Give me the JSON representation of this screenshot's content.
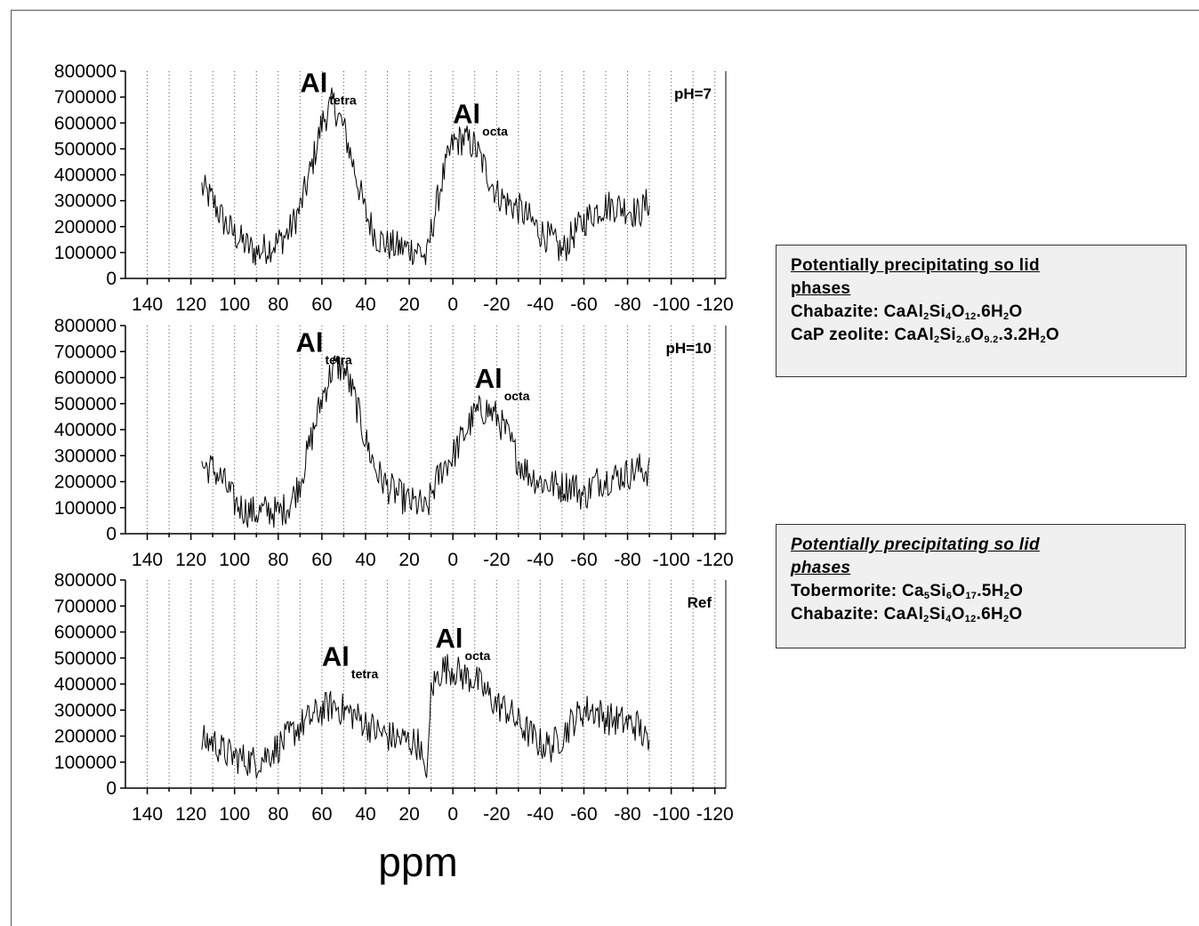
{
  "chart_data": [
    {
      "type": "line",
      "panel_label": "pH=7",
      "xlim": [
        150,
        -125
      ],
      "ylim": [
        0,
        800000
      ],
      "yticks": [
        "0",
        "100000",
        "200000",
        "300000",
        "400000",
        "500000",
        "600000",
        "700000",
        "800000"
      ],
      "xticks": [
        "140",
        "120",
        "100",
        "80",
        "60",
        "40",
        "20",
        "0",
        "-20",
        "-40",
        "-60",
        "-80",
        "-100",
        "-120"
      ],
      "grid": "vertical dotted",
      "peak_labels": [
        {
          "main": "Al",
          "sub": "tetra",
          "x": 70,
          "y": 720000
        },
        {
          "main": "Al",
          "sub": "octa",
          "x": 0,
          "y": 600000
        }
      ],
      "series": [
        {
          "x": [
            115,
            110,
            105,
            100,
            95,
            90,
            85,
            80,
            75,
            70,
            65,
            60,
            55,
            50,
            45,
            40,
            35,
            30,
            25,
            20,
            15,
            12,
            10,
            5,
            0,
            -5,
            -10,
            -15,
            -20,
            -25,
            -30,
            -35,
            -40,
            -45,
            -50,
            -55,
            -60,
            -65,
            -70,
            -75,
            -80,
            -85,
            -90
          ],
          "values": [
            350000,
            300000,
            220000,
            170000,
            130000,
            100000,
            120000,
            140000,
            180000,
            270000,
            420000,
            600000,
            680000,
            580000,
            420000,
            250000,
            160000,
            130000,
            120000,
            115000,
            110000,
            70000,
            180000,
            380000,
            520000,
            540000,
            510000,
            420000,
            330000,
            290000,
            270000,
            230000,
            180000,
            150000,
            100000,
            170000,
            220000,
            260000,
            280000,
            280000,
            270000,
            250000,
            300000
          ]
        }
      ]
    },
    {
      "type": "line",
      "panel_label": "pH=10",
      "xlim": [
        150,
        -125
      ],
      "ylim": [
        0,
        800000
      ],
      "yticks": [
        "0",
        "100000",
        "200000",
        "300000",
        "400000",
        "500000",
        "600000",
        "700000",
        "800000"
      ],
      "xticks": [
        "140",
        "120",
        "100",
        "80",
        "60",
        "40",
        "20",
        "0",
        "-20",
        "-40",
        "-60",
        "-80",
        "-100",
        "-120"
      ],
      "grid": "vertical dotted",
      "peak_labels": [
        {
          "main": "Al",
          "sub": "tetra",
          "x": 72,
          "y": 700000
        },
        {
          "main": "Al",
          "sub": "octa",
          "x": -10,
          "y": 560000
        }
      ],
      "series": [
        {
          "x": [
            115,
            110,
            105,
            100,
            95,
            90,
            85,
            80,
            75,
            70,
            65,
            60,
            55,
            50,
            45,
            40,
            35,
            30,
            25,
            20,
            15,
            12,
            10,
            5,
            0,
            -5,
            -10,
            -15,
            -20,
            -25,
            -30,
            -35,
            -40,
            -45,
            -50,
            -55,
            -60,
            -65,
            -70,
            -75,
            -80,
            -85,
            -90
          ],
          "values": [
            260000,
            250000,
            200000,
            120000,
            90000,
            80000,
            90000,
            80000,
            110000,
            200000,
            360000,
            520000,
            640000,
            640000,
            520000,
            360000,
            240000,
            180000,
            150000,
            120000,
            110000,
            80000,
            150000,
            250000,
            300000,
            380000,
            460000,
            480000,
            450000,
            380000,
            280000,
            230000,
            200000,
            190000,
            180000,
            190000,
            140000,
            200000,
            210000,
            220000,
            230000,
            250000,
            240000
          ]
        }
      ]
    },
    {
      "type": "line",
      "panel_label": "Ref",
      "xlim": [
        150,
        -125
      ],
      "ylim": [
        0,
        800000
      ],
      "yticks": [
        "0",
        "100000",
        "200000",
        "300000",
        "400000",
        "500000",
        "600000",
        "700000",
        "800000"
      ],
      "xticks": [
        "140",
        "120",
        "100",
        "80",
        "60",
        "40",
        "20",
        "0",
        "-20",
        "-40",
        "-60",
        "-80",
        "-100",
        "-120"
      ],
      "grid": "vertical dotted",
      "peak_labels": [
        {
          "main": "Al",
          "sub": "tetra",
          "x": 60,
          "y": 470000
        },
        {
          "main": "Al",
          "sub": "octa",
          "x": 8,
          "y": 540000
        }
      ],
      "series": [
        {
          "x": [
            115,
            110,
            105,
            100,
            95,
            90,
            85,
            80,
            75,
            70,
            65,
            60,
            55,
            50,
            45,
            40,
            35,
            30,
            25,
            20,
            15,
            13,
            11,
            10,
            5,
            0,
            -5,
            -10,
            -15,
            -20,
            -25,
            -30,
            -35,
            -40,
            -45,
            -50,
            -55,
            -60,
            -65,
            -70,
            -75,
            -80,
            -85,
            -90
          ],
          "values": [
            180000,
            180000,
            140000,
            120000,
            110000,
            100000,
            130000,
            160000,
            200000,
            240000,
            270000,
            300000,
            320000,
            300000,
            280000,
            250000,
            220000,
            200000,
            190000,
            180000,
            170000,
            30000,
            150000,
            380000,
            460000,
            460000,
            430000,
            420000,
            370000,
            320000,
            300000,
            250000,
            210000,
            170000,
            160000,
            200000,
            260000,
            300000,
            300000,
            270000,
            260000,
            250000,
            240000,
            150000
          ]
        }
      ]
    }
  ],
  "x_axis_label": "ppm",
  "box1": {
    "header_line1": "Potentially precipitating so lid",
    "header_line2": "phases ",
    "line1_name": "Chabazite: ",
    "line2_name": "CaP zeolite: "
  },
  "box2": {
    "header_line1": "Potentially precipitating so lid",
    "header_line2": "phases ",
    "line1_name": "Tobermorite: ",
    "line2_name": " Chabazite: "
  }
}
